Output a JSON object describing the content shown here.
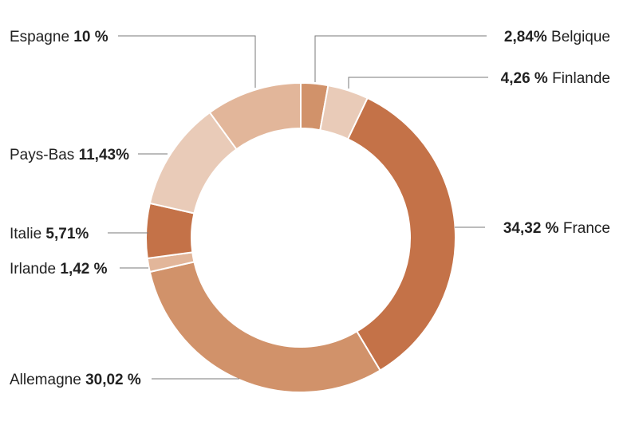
{
  "chart_data": {
    "type": "pie",
    "donut": true,
    "title": "",
    "slices": [
      {
        "name": "Belgique",
        "value": 2.84,
        "label": "2,84%",
        "color": "#d1926a"
      },
      {
        "name": "Finlande",
        "value": 4.26,
        "label": "4,26 %",
        "color": "#e9cbb8"
      },
      {
        "name": "France",
        "value": 34.32,
        "label": "34,32 %",
        "color": "#c47248"
      },
      {
        "name": "Allemagne",
        "value": 30.02,
        "label": "30,02 %",
        "color": "#d1926a"
      },
      {
        "name": "Irlande",
        "value": 1.42,
        "label": "1,42 %",
        "color": "#e2b69a"
      },
      {
        "name": "Italie",
        "value": 5.71,
        "label": "5,71%",
        "color": "#c47248"
      },
      {
        "name": "Pays-Bas",
        "value": 11.43,
        "label": "11,43%",
        "color": "#e9cbb8"
      },
      {
        "name": "Espagne",
        "value": 10,
        "label": "10 %",
        "color": "#e2b69a"
      }
    ]
  }
}
